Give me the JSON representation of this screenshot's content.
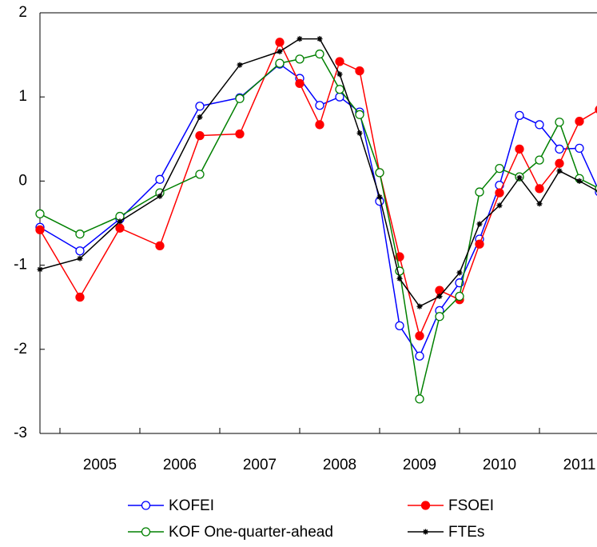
{
  "chart_data": {
    "type": "line",
    "x": [
      2004.75,
      2005.25,
      2005.75,
      2006.25,
      2006.75,
      2007.25,
      2007.75,
      2008.0,
      2008.25,
      2008.5,
      2008.75,
      2009.0,
      2009.25,
      2009.5,
      2009.75,
      2010.0,
      2010.25,
      2010.5,
      2010.75,
      2011.0,
      2011.25,
      2011.5,
      2011.75
    ],
    "series": [
      {
        "name": "KOFEI",
        "color": "#0000ff",
        "marker": "circle-open",
        "values": [
          -0.55,
          -0.83,
          -0.45,
          0.02,
          0.89,
          0.99,
          1.39,
          1.22,
          0.9,
          1.0,
          0.82,
          -0.24,
          -1.72,
          -2.08,
          -1.54,
          -1.21,
          -0.69,
          -0.05,
          0.78,
          0.67,
          0.38,
          0.39,
          -0.13
        ]
      },
      {
        "name": "FSOEI",
        "color": "#ff0000",
        "marker": "circle-filled",
        "values": [
          -0.58,
          -1.38,
          -0.56,
          -0.77,
          0.54,
          0.56,
          1.65,
          1.16,
          0.67,
          1.42,
          1.31,
          0.1,
          -0.9,
          -1.84,
          -1.3,
          -1.41,
          -0.75,
          -0.14,
          0.38,
          -0.09,
          0.21,
          0.71,
          0.85
        ]
      },
      {
        "name": "KOF One-quarter-ahead",
        "color": "#008000",
        "marker": "circle-open",
        "values": [
          -0.39,
          -0.63,
          -0.42,
          -0.14,
          0.08,
          0.98,
          1.4,
          1.45,
          1.51,
          1.09,
          0.79,
          0.1,
          -1.07,
          -2.59,
          -1.61,
          -1.37,
          -0.13,
          0.15,
          0.05,
          0.25,
          0.7,
          0.03,
          -0.09
        ]
      },
      {
        "name": "FTEs",
        "color": "#000000",
        "marker": "star",
        "values": [
          -1.05,
          -0.92,
          -0.48,
          -0.18,
          0.76,
          1.38,
          1.54,
          1.69,
          1.69,
          1.27,
          0.57,
          -0.19,
          -1.16,
          -1.49,
          -1.37,
          -1.09,
          -0.51,
          -0.29,
          0.04,
          -0.27,
          0.12,
          0.0,
          -0.13
        ]
      }
    ],
    "xlim": [
      2004.75,
      2011.72
    ],
    "xticks": [
      {
        "value": 2005.5,
        "label": "2005"
      },
      {
        "value": 2006.5,
        "label": "2006"
      },
      {
        "value": 2007.5,
        "label": "2007"
      },
      {
        "value": 2008.5,
        "label": "2008"
      },
      {
        "value": 2009.5,
        "label": "2009"
      },
      {
        "value": 2010.5,
        "label": "2010"
      },
      {
        "value": 2011.5,
        "label": "2011"
      }
    ],
    "ylim": [
      -3,
      2
    ],
    "yticks": [
      -3,
      -2,
      -1,
      0,
      1,
      2
    ],
    "legend": "bottom"
  }
}
